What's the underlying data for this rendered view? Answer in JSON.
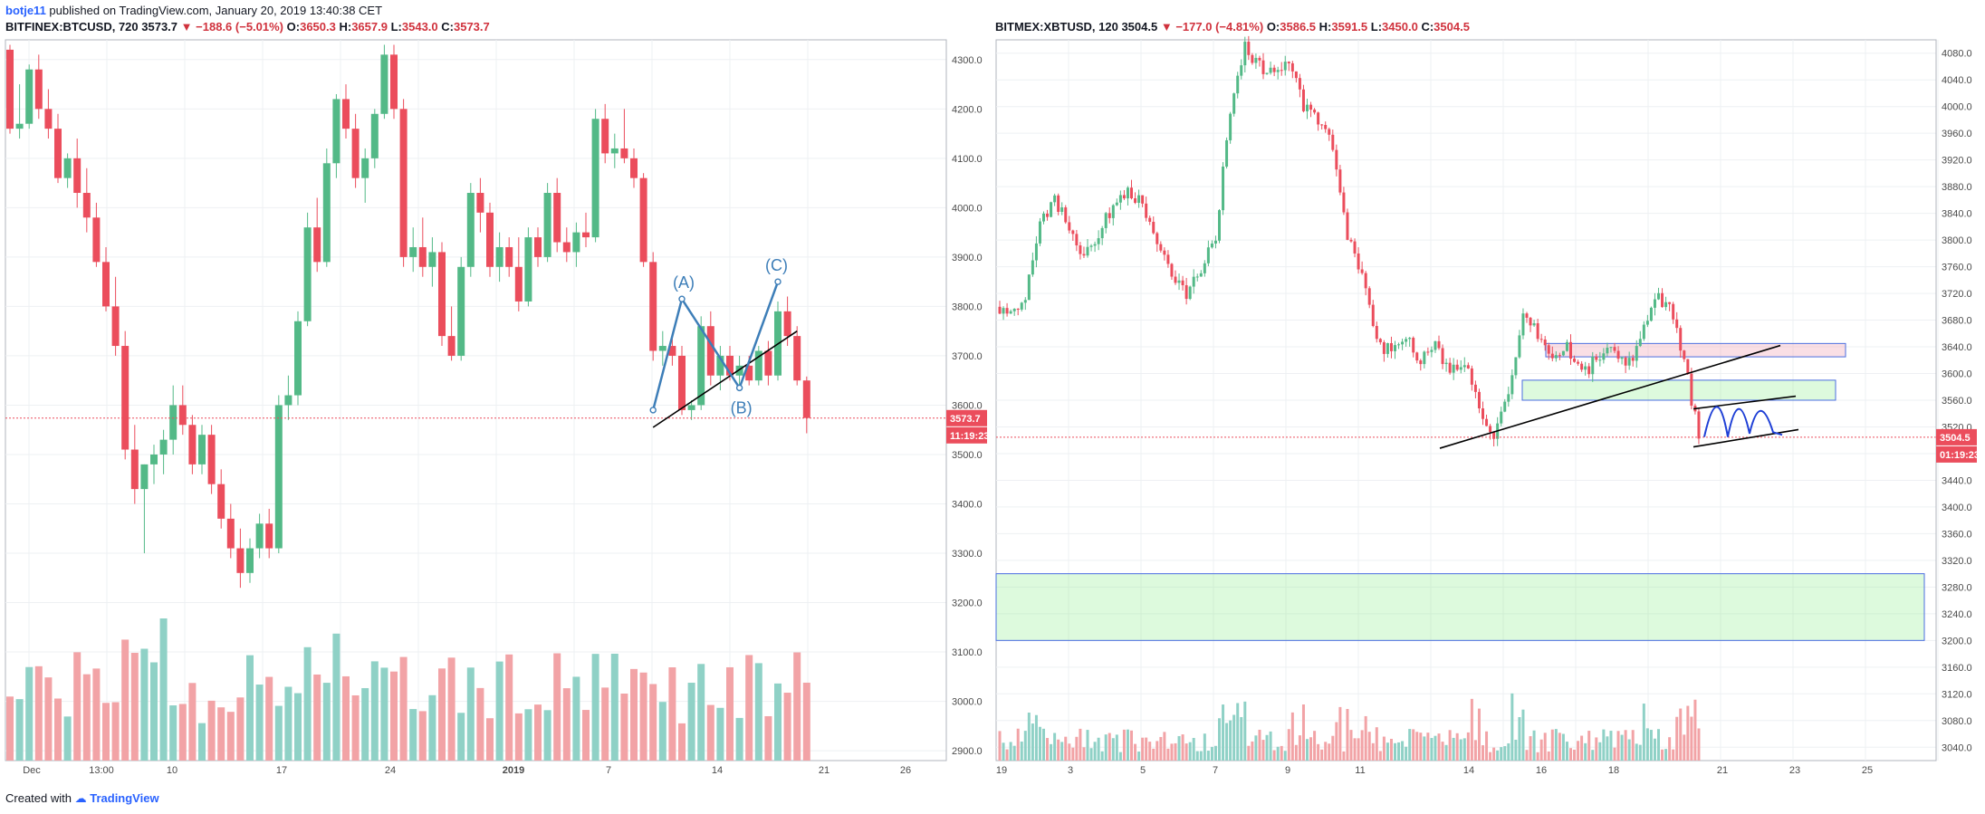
{
  "header": {
    "user": "botje11",
    "published": "published on TradingView.com, January 20, 2019 13:40:38 CET"
  },
  "panels": [
    {
      "symbol": "BITFINEX:BTCUSD, 720",
      "last": "3573.7",
      "change": "−188.6 (−5.01%)",
      "open": "3650.3",
      "high": "3657.9",
      "low": "3543.0",
      "close": "3573.7",
      "price_tag": "3573.7",
      "time_tag": "11:19:23"
    },
    {
      "symbol": "BITMEX:XBTUSD, 120",
      "last": "3504.5",
      "change": "−177.0 (−4.81%)",
      "open": "3586.5",
      "high": "3591.5",
      "low": "3450.0",
      "close": "3504.5",
      "price_tag": "3504.5",
      "time_tag": "01:19:23"
    }
  ],
  "labels": {
    "O": "O:",
    "H": "H:",
    "L": "L:",
    "C": "C:"
  },
  "footer": {
    "created": "Created with",
    "brand": "TradingView"
  },
  "colors": {
    "up": "#53b987",
    "down": "#eb4d5c",
    "up_vol": "#8fd1c6",
    "down_vol": "#f2a3a6",
    "wave": "#3d7eb8",
    "grid": "#eef0f3"
  },
  "chart_data": [
    {
      "type": "candlestick",
      "symbol": "BITFINEX:BTCUSD",
      "interval": "720",
      "ylim": [
        2880,
        4340
      ],
      "y_ticks": [
        2900,
        3000,
        3100,
        3200,
        3300,
        3400,
        3500,
        3600,
        3700,
        3800,
        3900,
        4000,
        4100,
        4200,
        4300
      ],
      "x_ticks": [
        "Dec",
        "13:00",
        "10",
        "17",
        "24",
        "2019",
        "7",
        "14",
        "21",
        "26"
      ],
      "current_price": 3573.7,
      "wave_labels": [
        "(A)",
        "(B)",
        "(C)"
      ],
      "wave_points": [
        [
          67,
          3590
        ],
        [
          70,
          3815
        ],
        [
          76,
          3635
        ],
        [
          80,
          3850
        ]
      ],
      "trendline": [
        [
          67,
          3555
        ],
        [
          82,
          3750
        ]
      ],
      "candles": [
        [
          4320,
          4330,
          4150,
          4160
        ],
        [
          4160,
          4250,
          4140,
          4170
        ],
        [
          4170,
          4290,
          4160,
          4280
        ],
        [
          4280,
          4310,
          4180,
          4200
        ],
        [
          4200,
          4240,
          4140,
          4160
        ],
        [
          4160,
          4190,
          4050,
          4060
        ],
        [
          4060,
          4110,
          4040,
          4100
        ],
        [
          4100,
          4140,
          4000,
          4030
        ],
        [
          4030,
          4080,
          3950,
          3980
        ],
        [
          3980,
          4010,
          3880,
          3890
        ],
        [
          3890,
          3920,
          3790,
          3800
        ],
        [
          3800,
          3860,
          3700,
          3720
        ],
        [
          3720,
          3750,
          3490,
          3510
        ],
        [
          3510,
          3560,
          3400,
          3430
        ],
        [
          3430,
          3480,
          3300,
          3480
        ],
        [
          3480,
          3520,
          3440,
          3500
        ],
        [
          3500,
          3550,
          3460,
          3530
        ],
        [
          3530,
          3640,
          3500,
          3600
        ],
        [
          3600,
          3640,
          3540,
          3560
        ],
        [
          3560,
          3580,
          3460,
          3480
        ],
        [
          3480,
          3560,
          3460,
          3540
        ],
        [
          3540,
          3560,
          3420,
          3440
        ],
        [
          3440,
          3470,
          3350,
          3370
        ],
        [
          3370,
          3400,
          3290,
          3310
        ],
        [
          3310,
          3350,
          3230,
          3260
        ],
        [
          3260,
          3330,
          3240,
          3310
        ],
        [
          3310,
          3380,
          3290,
          3360
        ],
        [
          3360,
          3390,
          3290,
          3310
        ],
        [
          3310,
          3620,
          3300,
          3600
        ],
        [
          3600,
          3660,
          3570,
          3620
        ],
        [
          3620,
          3790,
          3600,
          3770
        ],
        [
          3770,
          3990,
          3760,
          3960
        ],
        [
          3960,
          4020,
          3870,
          3890
        ],
        [
          3890,
          4120,
          3880,
          4090
        ],
        [
          4090,
          4230,
          4060,
          4220
        ],
        [
          4220,
          4250,
          4140,
          4160
        ],
        [
          4160,
          4190,
          4040,
          4060
        ],
        [
          4060,
          4120,
          4010,
          4100
        ],
        [
          4100,
          4200,
          4080,
          4190
        ],
        [
          4190,
          4330,
          4180,
          4310
        ],
        [
          4310,
          4330,
          4180,
          4200
        ],
        [
          4200,
          4220,
          3880,
          3900
        ],
        [
          3900,
          3960,
          3870,
          3920
        ],
        [
          3920,
          3980,
          3860,
          3880
        ],
        [
          3880,
          3940,
          3840,
          3910
        ],
        [
          3910,
          3930,
          3720,
          3740
        ],
        [
          3740,
          3800,
          3690,
          3700
        ],
        [
          3700,
          3900,
          3690,
          3880
        ],
        [
          3880,
          4050,
          3860,
          4030
        ],
        [
          4030,
          4060,
          3950,
          3990
        ],
        [
          3990,
          4010,
          3860,
          3880
        ],
        [
          3880,
          3950,
          3850,
          3920
        ],
        [
          3920,
          3940,
          3860,
          3880
        ],
        [
          3880,
          3940,
          3790,
          3810
        ],
        [
          3810,
          3960,
          3800,
          3940
        ],
        [
          3940,
          3960,
          3880,
          3900
        ],
        [
          3900,
          4050,
          3890,
          4030
        ],
        [
          4030,
          4060,
          3910,
          3930
        ],
        [
          3930,
          3960,
          3890,
          3910
        ],
        [
          3910,
          3970,
          3880,
          3950
        ],
        [
          3950,
          3990,
          3920,
          3940
        ],
        [
          3940,
          4200,
          3930,
          4180
        ],
        [
          4180,
          4210,
          4090,
          4110
        ],
        [
          4110,
          4150,
          4080,
          4120
        ],
        [
          4120,
          4200,
          4090,
          4100
        ],
        [
          4100,
          4120,
          4040,
          4060
        ],
        [
          4060,
          4070,
          3880,
          3890
        ],
        [
          3890,
          3910,
          3690,
          3710
        ],
        [
          3710,
          3750,
          3680,
          3720
        ],
        [
          3720,
          3740,
          3680,
          3700
        ],
        [
          3700,
          3720,
          3580,
          3590
        ],
        [
          3590,
          3610,
          3570,
          3600
        ],
        [
          3600,
          3780,
          3590,
          3760
        ],
        [
          3760,
          3790,
          3640,
          3660
        ],
        [
          3660,
          3720,
          3630,
          3700
        ],
        [
          3700,
          3720,
          3650,
          3660
        ],
        [
          3660,
          3700,
          3640,
          3680
        ],
        [
          3680,
          3700,
          3640,
          3650
        ],
        [
          3650,
          3720,
          3640,
          3710
        ],
        [
          3710,
          3730,
          3640,
          3660
        ],
        [
          3660,
          3810,
          3650,
          3790
        ],
        [
          3790,
          3820,
          3720,
          3740
        ],
        [
          3740,
          3760,
          3640,
          3650
        ],
        [
          3650,
          3658,
          3543,
          3574
        ]
      ]
    },
    {
      "type": "candlestick",
      "symbol": "BITMEX:XBTUSD",
      "interval": "120",
      "ylim": [
        3020,
        4100
      ],
      "y_ticks": [
        3040,
        3080,
        3120,
        3160,
        3200,
        3240,
        3280,
        3320,
        3360,
        3400,
        3440,
        3480,
        3520,
        3560,
        3600,
        3640,
        3680,
        3720,
        3760,
        3800,
        3840,
        3880,
        3920,
        3960,
        4000,
        4040,
        4080
      ],
      "x_ticks": [
        "19",
        "3",
        "5",
        "7",
        "9",
        "11",
        "14",
        "16",
        "18",
        "21",
        "23",
        "25"
      ],
      "current_price": 3504.5,
      "zones": [
        {
          "from": 3625,
          "to": 3645,
          "color": "pink"
        },
        {
          "from": 3560,
          "to": 3590,
          "color": "green"
        },
        {
          "from": 3200,
          "to": 3300,
          "color": "green"
        }
      ],
      "closes": [
        3700,
        3690,
        3720,
        3830,
        3860,
        3820,
        3780,
        3810,
        3850,
        3880,
        3850,
        3800,
        3740,
        3720,
        3760,
        3800,
        4000,
        4090,
        4060,
        4050,
        4070,
        4000,
        3980,
        3940,
        3800,
        3750,
        3650,
        3630,
        3660,
        3620,
        3640,
        3600,
        3620,
        3550,
        3510,
        3560,
        3680,
        3660,
        3620,
        3640,
        3600,
        3620,
        3640,
        3610,
        3650,
        3720,
        3700,
        3620,
        3505
      ]
    }
  ]
}
